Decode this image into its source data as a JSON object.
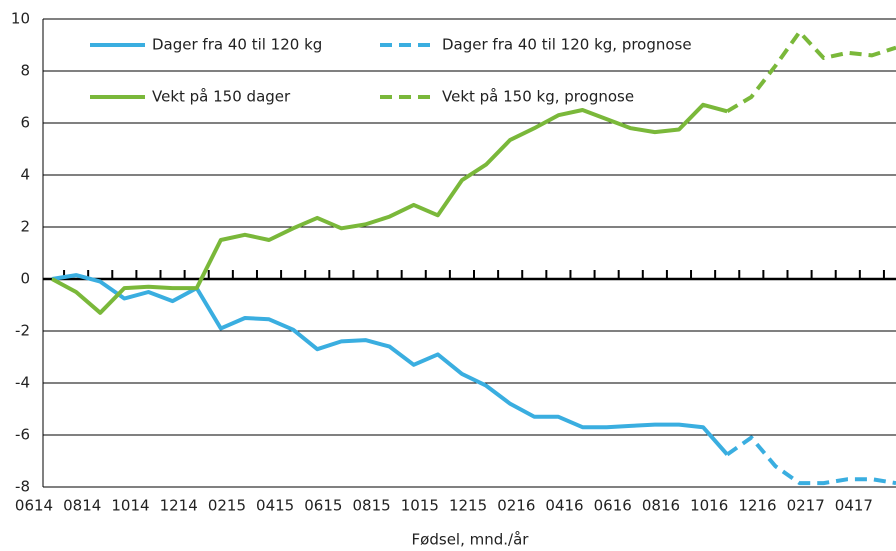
{
  "chart_data": {
    "type": "line",
    "xlabel": "Fødsel, mnd./år",
    "categories": [
      "0614",
      null,
      "0814",
      null,
      "1014",
      null,
      "1214",
      null,
      "0215",
      null,
      "0415",
      null,
      "0615",
      null,
      "0815",
      null,
      "1015",
      null,
      "1215",
      null,
      "0216",
      null,
      "0416",
      null,
      "0616",
      null,
      "0816",
      null,
      "1016",
      null,
      "1216",
      null,
      "0217",
      null,
      "0417",
      null
    ],
    "series": [
      {
        "name": "Dager fra 40 til 120 kg",
        "color": "#3aaee0",
        "dashed": false,
        "values": [
          0,
          0.15,
          -0.1,
          -0.75,
          -0.5,
          -0.85,
          -0.35,
          -1.9,
          -1.5,
          -1.55,
          -1.95,
          -2.7,
          -2.4,
          -2.35,
          -2.6,
          -3.3,
          -2.9,
          -3.65,
          -4.1,
          -4.8,
          -5.3,
          -5.3,
          -5.7,
          -5.7,
          -5.65,
          -5.6,
          -5.6,
          -5.7,
          -6.75,
          null,
          null,
          null,
          null,
          null,
          null,
          null
        ]
      },
      {
        "name": "Dager fra 40 til 120 kg, prognose",
        "color": "#3aaee0",
        "dashed": true,
        "values": [
          null,
          null,
          null,
          null,
          null,
          null,
          null,
          null,
          null,
          null,
          null,
          null,
          null,
          null,
          null,
          null,
          null,
          null,
          null,
          null,
          null,
          null,
          null,
          null,
          null,
          null,
          null,
          null,
          -6.75,
          -6.1,
          -7.2,
          -7.85,
          -7.85,
          -7.7,
          -7.7,
          -7.85
        ]
      },
      {
        "name": "Vekt på 150 dager",
        "color": "#7ab83a",
        "dashed": false,
        "values": [
          0,
          -0.5,
          -1.3,
          -0.35,
          -0.3,
          -0.35,
          -0.35,
          1.5,
          1.7,
          1.5,
          1.95,
          2.35,
          1.95,
          2.1,
          2.4,
          2.85,
          2.45,
          3.8,
          4.4,
          5.35,
          5.8,
          6.3,
          6.5,
          6.15,
          5.8,
          5.65,
          5.75,
          6.7,
          6.45,
          null,
          null,
          null,
          null,
          null,
          null,
          null
        ]
      },
      {
        "name": "Vekt på 150 kg, prognose",
        "color": "#7ab83a",
        "dashed": true,
        "values": [
          null,
          null,
          null,
          null,
          null,
          null,
          null,
          null,
          null,
          null,
          null,
          null,
          null,
          null,
          null,
          null,
          null,
          null,
          null,
          null,
          null,
          null,
          null,
          null,
          null,
          null,
          null,
          null,
          6.45,
          7.0,
          8.2,
          9.5,
          8.5,
          8.7,
          8.6,
          8.9
        ]
      }
    ],
    "ylim": [
      -8,
      10
    ],
    "yticks": [
      -8,
      -6,
      -4,
      -2,
      0,
      2,
      4,
      6,
      8,
      10
    ],
    "grid": true
  }
}
